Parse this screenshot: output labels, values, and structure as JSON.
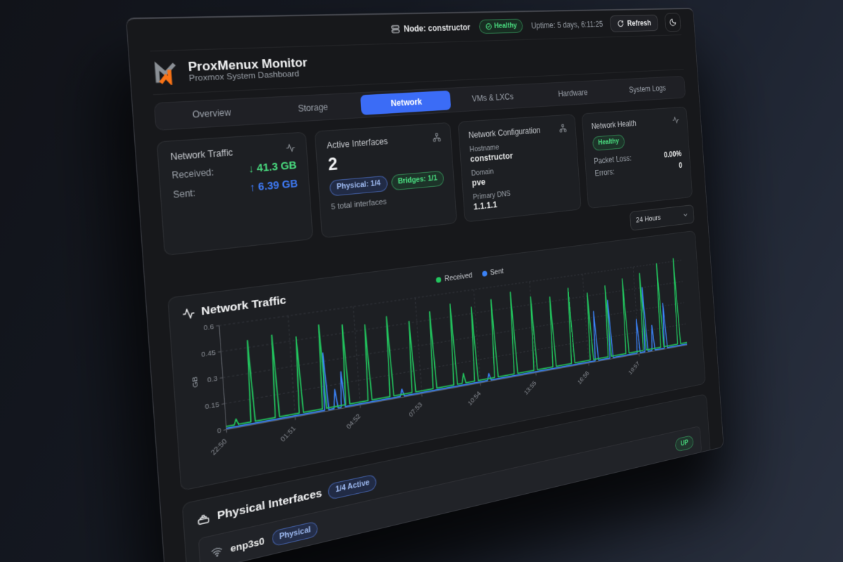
{
  "topbar": {
    "node_label": "Node: constructor",
    "health_badge": "Healthy",
    "uptime": "Uptime: 5 days, 6:11:25",
    "refresh_label": "Refresh"
  },
  "brand": {
    "title": "ProxMenux Monitor",
    "subtitle": "Proxmox System Dashboard"
  },
  "tabs": [
    {
      "label": "Overview",
      "active": false
    },
    {
      "label": "Storage",
      "active": false
    },
    {
      "label": "Network",
      "active": true
    },
    {
      "label": "VMs & LXCs",
      "active": false
    },
    {
      "label": "Hardware",
      "active": false
    },
    {
      "label": "System Logs",
      "active": false
    }
  ],
  "cards": {
    "traffic": {
      "title": "Network Traffic",
      "received_label": "Received:",
      "received_value": "↓ 41.3 GB",
      "sent_label": "Sent:",
      "sent_value": "↑ 6.39 GB"
    },
    "interfaces": {
      "title": "Active Interfaces",
      "count": "2",
      "physical_badge": "Physical: 1/4",
      "bridges_badge": "Bridges: 1/1",
      "note": "5 total interfaces"
    },
    "config": {
      "title": "Network Configuration",
      "hostname_label": "Hostname",
      "hostname_value": "constructor",
      "domain_label": "Domain",
      "domain_value": "pve",
      "dns_label": "Primary DNS",
      "dns_value": "1.1.1.1"
    },
    "health": {
      "title": "Network Health",
      "status_badge": "Healthy",
      "packet_loss_label": "Packet Loss:",
      "packet_loss_value": "0.00%",
      "errors_label": "Errors:",
      "errors_value": "0"
    }
  },
  "range_select": {
    "value": "24 Hours"
  },
  "chart_card": {
    "title": "Network Traffic"
  },
  "chart_data": {
    "type": "line",
    "title": "Network Traffic",
    "ylabel": "GB",
    "ylim": [
      0,
      0.6
    ],
    "yticks": [
      "0",
      "0.15",
      "0.3",
      "0.45",
      "0.6"
    ],
    "xticks": [
      "22:50",
      "01:51",
      "04:52",
      "07:53",
      "10:54",
      "13:55",
      "16:56",
      "19:57"
    ],
    "grid": true,
    "legend_position": "top-center",
    "series": [
      {
        "name": "Received",
        "color": "#22c55e",
        "baseline_gb": 0.018,
        "spikes": [
          [
            0.018,
            0.05
          ],
          [
            0.048,
            0.49
          ],
          [
            0.0925,
            0.5
          ],
          [
            0.137,
            0.47
          ],
          [
            0.181,
            0.52
          ],
          [
            0.226,
            0.5
          ],
          [
            0.27,
            0.48
          ],
          [
            0.314,
            0.51
          ],
          [
            0.359,
            0.46
          ],
          [
            0.403,
            0.5
          ],
          [
            0.447,
            0.53
          ],
          [
            0.465,
            0.08
          ],
          [
            0.492,
            0.49
          ],
          [
            0.536,
            0.52
          ],
          [
            0.58,
            0.55
          ],
          [
            0.625,
            0.5
          ],
          [
            0.669,
            0.48
          ],
          [
            0.713,
            0.52
          ],
          [
            0.758,
            0.47
          ],
          [
            0.802,
            0.5
          ],
          [
            0.846,
            0.53
          ],
          [
            0.89,
            0.55
          ],
          [
            0.935,
            0.6
          ],
          [
            0.979,
            0.62
          ]
        ]
      },
      {
        "name": "Sent",
        "color": "#3b82f6",
        "baseline_gb": 0.007,
        "spikes": [
          [
            0.185,
            0.35
          ],
          [
            0.203,
            0.12
          ],
          [
            0.217,
            0.22
          ],
          [
            0.335,
            0.05
          ],
          [
            0.52,
            0.05
          ],
          [
            0.77,
            0.34
          ],
          [
            0.806,
            0.4
          ],
          [
            0.874,
            0.24
          ],
          [
            0.894,
            0.45
          ],
          [
            0.912,
            0.18
          ],
          [
            0.944,
            0.32
          ]
        ]
      }
    ]
  },
  "physical": {
    "title": "Physical Interfaces",
    "active_badge": "1/4 Active",
    "row": {
      "name": "enp3s0",
      "type_badge": "Physical",
      "status_badge": "UP"
    }
  },
  "colors": {
    "accent_blue": "#3b6cf6",
    "green": "#4ade80",
    "value_blue": "#3f7bf7",
    "logo_orange": "#f97316",
    "card_bg": "#1d1f23",
    "dashboard_bg": "#17181b",
    "page_bg_dark": "#111319",
    "page_bg_light": "#2a3140"
  }
}
